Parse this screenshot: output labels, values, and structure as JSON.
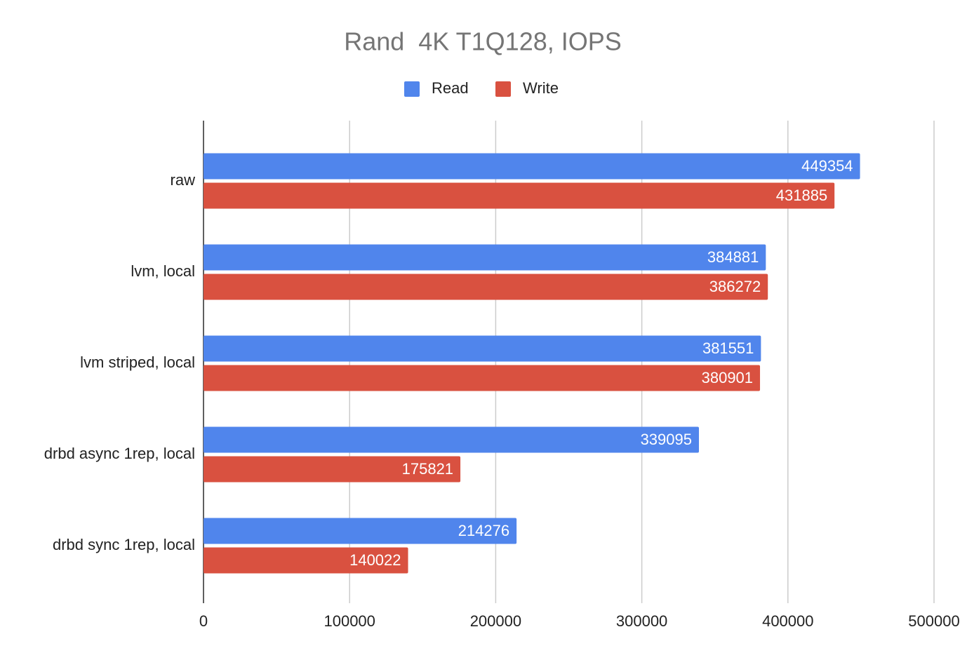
{
  "chart_data": {
    "type": "hbar",
    "title": "Rand  4K T1Q128, IOPS",
    "categories": [
      "raw",
      "lvm, local",
      "lvm striped, local",
      "drbd async 1rep, local",
      "drbd sync 1rep, local"
    ],
    "series": [
      {
        "name": "Read",
        "color": "#5085ec",
        "values": [
          449354,
          384881,
          381551,
          339095,
          214276
        ]
      },
      {
        "name": "Write",
        "color": "#d95140",
        "values": [
          431885,
          386272,
          380901,
          175821,
          140022
        ]
      }
    ],
    "xlim": [
      0,
      500000
    ],
    "xticks": [
      0,
      100000,
      200000,
      300000,
      400000,
      500000
    ],
    "grid": true,
    "legend": "top"
  }
}
